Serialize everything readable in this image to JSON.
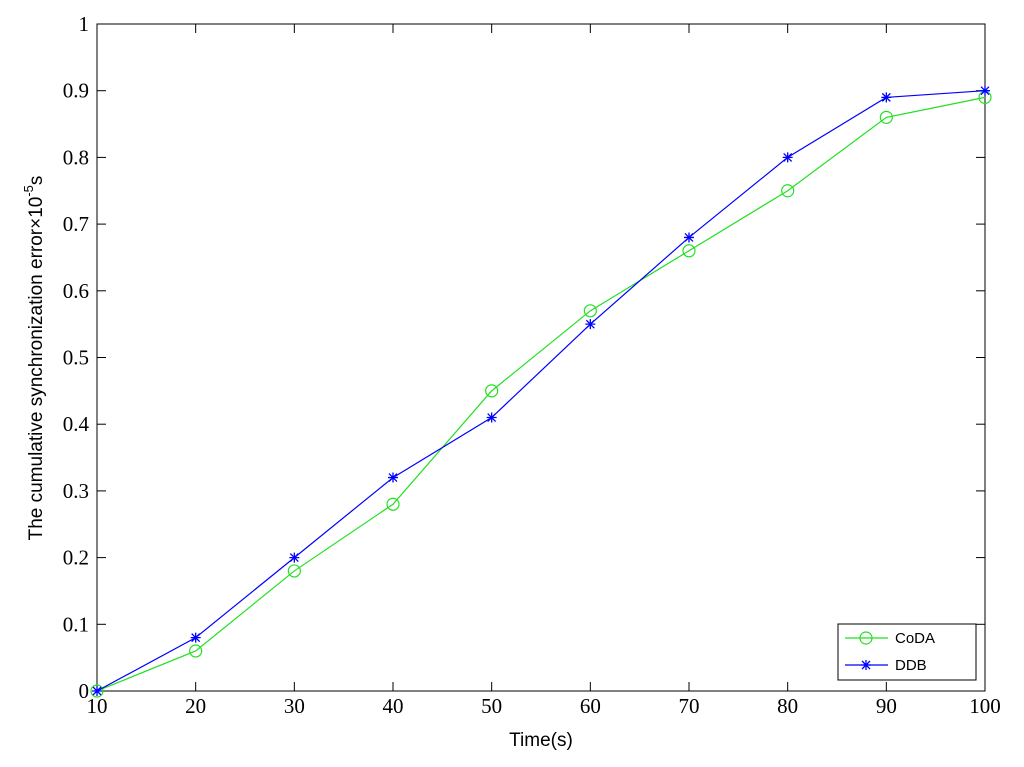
{
  "chart_data": {
    "type": "line",
    "x_label": "Time(s)",
    "y_label": [
      "The cumulative synchronization error×10",
      "-5",
      "s"
    ],
    "x": [
      10,
      20,
      30,
      40,
      50,
      60,
      70,
      80,
      90,
      100
    ],
    "series": [
      {
        "name": "CoDA",
        "color": "#22e022",
        "marker": "circle",
        "values": [
          0,
          0.06,
          0.18,
          0.28,
          0.45,
          0.57,
          0.66,
          0.75,
          0.86,
          0.89
        ]
      },
      {
        "name": "DDB",
        "color": "#0000ff",
        "marker": "star",
        "values": [
          0,
          0.08,
          0.2,
          0.32,
          0.41,
          0.55,
          0.68,
          0.8,
          0.89,
          0.9
        ]
      }
    ],
    "xlim": [
      10,
      100
    ],
    "xticks": [
      10,
      20,
      30,
      40,
      50,
      60,
      70,
      80,
      90,
      100
    ],
    "ylim": [
      0,
      1
    ],
    "yticks": [
      0,
      0.1,
      0.2,
      0.3,
      0.4,
      0.5,
      0.6,
      0.7,
      0.8,
      0.9,
      1
    ],
    "legend": "lower right",
    "grid": false
  }
}
